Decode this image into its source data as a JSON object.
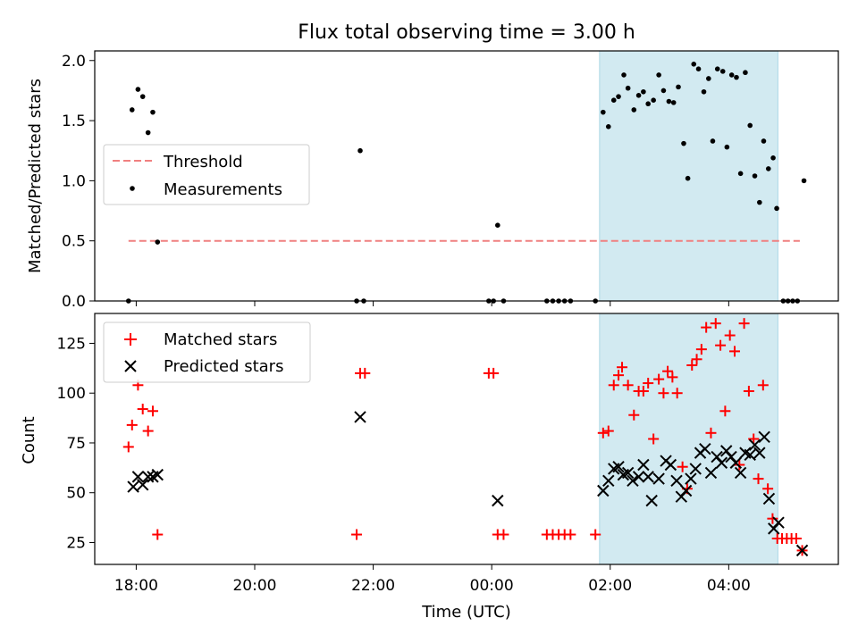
{
  "chart_data": {
    "title": "Flux total observing time = 3.00 h",
    "xlabel": "Time (UTC)",
    "x_units": "hours since 18:00 UTC",
    "xlim": [
      -0.7,
      11.85
    ],
    "x_ticks": [
      {
        "value": 0,
        "label": "18:00"
      },
      {
        "value": 2,
        "label": "20:00"
      },
      {
        "value": 4,
        "label": "22:00"
      },
      {
        "value": 6,
        "label": "00:00"
      },
      {
        "value": 8,
        "label": "02:00"
      },
      {
        "value": 10,
        "label": "04:00"
      }
    ],
    "observing_window": [
      7.82,
      10.83
    ],
    "shade_color": "#add8e6",
    "top": {
      "type": "scatter",
      "ylabel": "Matched/Predicted stars",
      "ylim": [
        0,
        2.08
      ],
      "y_ticks": [
        "0.0",
        "0.5",
        "1.0",
        "1.5",
        "2.0"
      ],
      "y_tick_values": [
        0,
        0.5,
        1,
        1.5,
        2
      ],
      "threshold": {
        "label": "Threshold",
        "value": 0.5,
        "x_range": [
          -0.13,
          11.2
        ],
        "color": "#f08080"
      },
      "measurements": {
        "label": "Measurements",
        "color": "#000000",
        "points": [
          [
            -0.13,
            0.0
          ],
          [
            -0.07,
            1.59
          ],
          [
            0.03,
            1.76
          ],
          [
            0.11,
            1.7
          ],
          [
            0.2,
            1.4
          ],
          [
            0.28,
            1.57
          ],
          [
            0.36,
            0.49
          ],
          [
            3.72,
            0.0
          ],
          [
            3.78,
            1.25
          ],
          [
            3.84,
            0.0
          ],
          [
            5.95,
            0.0
          ],
          [
            6.03,
            0.0
          ],
          [
            6.1,
            0.63
          ],
          [
            6.2,
            0.0
          ],
          [
            6.93,
            0.0
          ],
          [
            7.03,
            0.0
          ],
          [
            7.13,
            0.0
          ],
          [
            7.23,
            0.0
          ],
          [
            7.33,
            0.0
          ],
          [
            7.75,
            0.0
          ],
          [
            7.88,
            1.57
          ],
          [
            7.97,
            1.45
          ],
          [
            8.06,
            1.67
          ],
          [
            8.14,
            1.7
          ],
          [
            8.23,
            1.88
          ],
          [
            8.3,
            1.77
          ],
          [
            8.4,
            1.59
          ],
          [
            8.48,
            1.71
          ],
          [
            8.56,
            1.74
          ],
          [
            8.64,
            1.64
          ],
          [
            8.73,
            1.67
          ],
          [
            8.82,
            1.88
          ],
          [
            8.9,
            1.75
          ],
          [
            8.99,
            1.66
          ],
          [
            9.07,
            1.65
          ],
          [
            9.15,
            1.78
          ],
          [
            9.24,
            1.31
          ],
          [
            9.31,
            1.02
          ],
          [
            9.41,
            1.97
          ],
          [
            9.49,
            1.93
          ],
          [
            9.58,
            1.74
          ],
          [
            9.66,
            1.85
          ],
          [
            9.73,
            1.33
          ],
          [
            9.81,
            1.93
          ],
          [
            9.9,
            1.91
          ],
          [
            9.97,
            1.28
          ],
          [
            10.05,
            1.88
          ],
          [
            10.13,
            1.86
          ],
          [
            10.2,
            1.06
          ],
          [
            10.28,
            1.9
          ],
          [
            10.36,
            1.46
          ],
          [
            10.44,
            1.04
          ],
          [
            10.52,
            0.82
          ],
          [
            10.59,
            1.33
          ],
          [
            10.67,
            1.1
          ],
          [
            10.75,
            1.19
          ],
          [
            10.81,
            0.77
          ],
          [
            10.92,
            0.0
          ],
          [
            11.0,
            0.0
          ],
          [
            11.08,
            0.0
          ],
          [
            11.16,
            0.0
          ],
          [
            11.27,
            1.0
          ]
        ]
      }
    },
    "bottom": {
      "type": "scatter",
      "ylabel": "Count",
      "ylim": [
        14,
        140
      ],
      "y_ticks": [
        "25",
        "50",
        "75",
        "100",
        "125"
      ],
      "y_tick_values": [
        25,
        50,
        75,
        100,
        125
      ],
      "series": [
        {
          "name": "Matched stars",
          "marker": "+",
          "color": "#ff0000",
          "points": [
            [
              -0.13,
              73
            ],
            [
              -0.07,
              84
            ],
            [
              0.03,
              104
            ],
            [
              0.11,
              92
            ],
            [
              0.2,
              81
            ],
            [
              0.28,
              91
            ],
            [
              0.36,
              29
            ],
            [
              3.72,
              29
            ],
            [
              3.78,
              110
            ],
            [
              3.86,
              110
            ],
            [
              5.95,
              110
            ],
            [
              6.03,
              110
            ],
            [
              6.1,
              29
            ],
            [
              6.2,
              29
            ],
            [
              6.93,
              29
            ],
            [
              7.03,
              29
            ],
            [
              7.13,
              29
            ],
            [
              7.23,
              29
            ],
            [
              7.33,
              29
            ],
            [
              7.75,
              29
            ],
            [
              7.88,
              80
            ],
            [
              7.97,
              81
            ],
            [
              8.06,
              104
            ],
            [
              8.14,
              109
            ],
            [
              8.2,
              113
            ],
            [
              8.3,
              104
            ],
            [
              8.4,
              89
            ],
            [
              8.48,
              101
            ],
            [
              8.56,
              101
            ],
            [
              8.64,
              105
            ],
            [
              8.73,
              77
            ],
            [
              8.82,
              107
            ],
            [
              8.9,
              100
            ],
            [
              8.97,
              111
            ],
            [
              9.05,
              108
            ],
            [
              9.13,
              100
            ],
            [
              9.22,
              63
            ],
            [
              9.3,
              52
            ],
            [
              9.38,
              114
            ],
            [
              9.46,
              117
            ],
            [
              9.54,
              122
            ],
            [
              9.62,
              133
            ],
            [
              9.7,
              80
            ],
            [
              9.78,
              135
            ],
            [
              9.86,
              124
            ],
            [
              9.94,
              91
            ],
            [
              10.02,
              129
            ],
            [
              10.1,
              121
            ],
            [
              10.18,
              64
            ],
            [
              10.26,
              135
            ],
            [
              10.34,
              101
            ],
            [
              10.42,
              77
            ],
            [
              10.5,
              57
            ],
            [
              10.58,
              104
            ],
            [
              10.66,
              52
            ],
            [
              10.74,
              37
            ],
            [
              10.82,
              27
            ],
            [
              10.9,
              27
            ],
            [
              10.98,
              27
            ],
            [
              11.06,
              27
            ],
            [
              11.14,
              27
            ],
            [
              11.24,
              21
            ]
          ]
        },
        {
          "name": "Predicted stars",
          "marker": "x",
          "color": "#000000",
          "points": [
            [
              -0.05,
              53
            ],
            [
              0.03,
              58
            ],
            [
              0.11,
              54
            ],
            [
              0.2,
              58
            ],
            [
              0.28,
              58
            ],
            [
              0.36,
              59
            ],
            [
              3.78,
              88
            ],
            [
              6.1,
              46
            ],
            [
              7.88,
              51
            ],
            [
              7.97,
              56
            ],
            [
              8.06,
              62
            ],
            [
              8.14,
              63
            ],
            [
              8.22,
              59
            ],
            [
              8.3,
              60
            ],
            [
              8.38,
              56
            ],
            [
              8.48,
              58
            ],
            [
              8.56,
              64
            ],
            [
              8.64,
              58
            ],
            [
              8.7,
              46
            ],
            [
              8.82,
              57
            ],
            [
              8.94,
              66
            ],
            [
              9.02,
              64
            ],
            [
              9.12,
              56
            ],
            [
              9.2,
              48
            ],
            [
              9.28,
              51
            ],
            [
              9.36,
              57
            ],
            [
              9.44,
              62
            ],
            [
              9.52,
              70
            ],
            [
              9.6,
              72
            ],
            [
              9.7,
              60
            ],
            [
              9.8,
              68
            ],
            [
              9.88,
              65
            ],
            [
              9.96,
              71
            ],
            [
              10.04,
              68
            ],
            [
              10.12,
              65
            ],
            [
              10.2,
              60
            ],
            [
              10.28,
              70
            ],
            [
              10.36,
              69
            ],
            [
              10.44,
              74
            ],
            [
              10.52,
              70
            ],
            [
              10.6,
              78
            ],
            [
              10.68,
              47
            ],
            [
              10.76,
              32
            ],
            [
              10.84,
              35
            ],
            [
              11.24,
              21
            ]
          ]
        }
      ]
    }
  }
}
